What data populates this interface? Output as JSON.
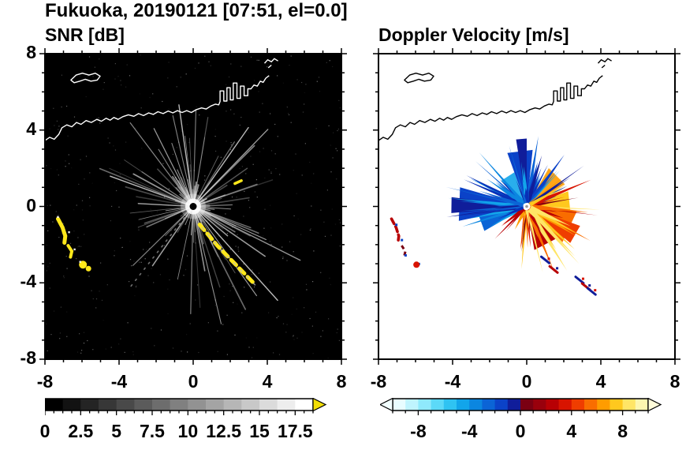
{
  "header": {
    "title": "Fukuoka, 20190121 [07:51, el=0.0]"
  },
  "panels": {
    "snr": {
      "title": "SNR [dB]"
    },
    "doppler": {
      "title": "Doppler Velocity [m/s]"
    }
  },
  "axes": {
    "x_tick_labels": [
      "-8",
      "-4",
      "0",
      "4",
      "8"
    ],
    "x_tick_values": [
      -8,
      -4,
      0,
      4,
      8
    ],
    "y_tick_labels": [
      "8",
      "4",
      "0",
      "-4",
      "-8"
    ],
    "y_tick_values": [
      8,
      4,
      0,
      -4,
      -8
    ],
    "minor_step": 1,
    "range": [
      -8,
      8
    ]
  },
  "colorbars": {
    "snr": {
      "tick_labels": [
        "0",
        "2.5",
        "5",
        "7.5",
        "10",
        "12.5",
        "15",
        "17.5"
      ],
      "tick_values": [
        0,
        2.5,
        5,
        7.5,
        10,
        12.5,
        15,
        17.5
      ],
      "range": [
        0,
        18.75
      ],
      "steps": 15,
      "colormap": "grayscale",
      "start_color": "#000000",
      "end_color": "#ffffff",
      "over_arrow_color": "#f2de05"
    },
    "doppler": {
      "tick_labels": [
        "-8",
        "-4",
        "0",
        "4",
        "8"
      ],
      "tick_values": [
        -8,
        -4,
        0,
        4,
        8
      ],
      "range": [
        -10,
        10
      ],
      "colors": [
        "#e8fdff",
        "#bff4fe",
        "#8fe9fc",
        "#5cd9f8",
        "#2fc3f2",
        "#12a5ea",
        "#0b86e0",
        "#0b64d6",
        "#0b42c8",
        "#101d9a",
        "#7a0012",
        "#99000c",
        "#b80004",
        "#d81400",
        "#ef3d00",
        "#f96d00",
        "#ff9c00",
        "#ffc81e",
        "#ffe566",
        "#fdf6b0"
      ],
      "under_arrow_color": "#f2ffff",
      "over_arrow_color": "#fffcda"
    }
  },
  "map_overlay": {
    "coastline_main": [
      [
        -8,
        3.45
      ],
      [
        -7.75,
        3.62
      ],
      [
        -7.5,
        3.52
      ],
      [
        -7.25,
        3.78
      ],
      [
        -7.08,
        4.12
      ],
      [
        -6.82,
        4.27
      ],
      [
        -6.55,
        4.17
      ],
      [
        -6.3,
        4.4
      ],
      [
        -6.05,
        4.3
      ],
      [
        -5.78,
        4.5
      ],
      [
        -5.5,
        4.4
      ],
      [
        -5.2,
        4.56
      ],
      [
        -4.95,
        4.46
      ],
      [
        -4.7,
        4.62
      ],
      [
        -4.48,
        4.52
      ],
      [
        -4.28,
        4.66
      ],
      [
        -4.05,
        4.56
      ],
      [
        -3.8,
        4.7
      ],
      [
        -3.5,
        4.8
      ],
      [
        -3.2,
        4.72
      ],
      [
        -2.95,
        4.86
      ],
      [
        -2.68,
        4.76
      ],
      [
        -2.4,
        4.9
      ],
      [
        -2.15,
        4.82
      ],
      [
        -1.9,
        4.96
      ],
      [
        -1.62,
        4.86
      ],
      [
        -1.35,
        5.0
      ],
      [
        -1.1,
        4.9
      ],
      [
        -0.85,
        5.02
      ],
      [
        -0.6,
        4.92
      ],
      [
        -0.35,
        5.02
      ],
      [
        -0.1,
        4.92
      ],
      [
        0.15,
        5.06
      ],
      [
        0.45,
        5.16
      ],
      [
        0.7,
        5.1
      ],
      [
        0.95,
        5.26
      ],
      [
        1.2,
        5.36
      ],
      [
        1.38,
        5.32
      ],
      [
        1.45,
        5.5
      ],
      [
        1.45,
        6.05
      ],
      [
        1.65,
        6.05
      ],
      [
        1.65,
        5.52
      ],
      [
        1.82,
        5.52
      ],
      [
        1.82,
        6.22
      ],
      [
        2.0,
        6.22
      ],
      [
        2.0,
        5.58
      ],
      [
        2.16,
        5.58
      ],
      [
        2.16,
        6.46
      ],
      [
        2.36,
        6.46
      ],
      [
        2.36,
        5.66
      ],
      [
        2.55,
        5.66
      ],
      [
        2.55,
        6.3
      ],
      [
        2.75,
        6.3
      ],
      [
        2.75,
        5.8
      ],
      [
        2.95,
        5.8
      ],
      [
        2.95,
        6.16
      ],
      [
        3.12,
        6.16
      ],
      [
        3.28,
        6.36
      ],
      [
        3.46,
        6.3
      ],
      [
        3.62,
        6.56
      ],
      [
        3.78,
        6.5
      ],
      [
        3.92,
        6.72
      ],
      [
        4.1,
        6.85
      ]
    ],
    "island": [
      [
        -6.6,
        6.62
      ],
      [
        -6.32,
        6.88
      ],
      [
        -5.98,
        6.98
      ],
      [
        -5.62,
        6.88
      ],
      [
        -5.28,
        6.98
      ],
      [
        -5.02,
        6.82
      ],
      [
        -5.18,
        6.62
      ],
      [
        -5.52,
        6.56
      ],
      [
        -5.82,
        6.66
      ],
      [
        -6.12,
        6.56
      ],
      [
        -6.42,
        6.48
      ]
    ],
    "top_marks": [
      [
        [
          3.85,
          7.5
        ],
        [
          4.02,
          7.68
        ],
        [
          4.22,
          7.58
        ],
        [
          4.38,
          7.74
        ],
        [
          4.58,
          7.62
        ]
      ],
      [
        [
          4.05,
          7.26
        ],
        [
          4.22,
          7.4
        ]
      ]
    ]
  },
  "chart_data": [
    {
      "type": "heatmap",
      "title": "SNR [dB]",
      "figure_title": "Fukuoka, 20190121 [07:51, el=0.0]",
      "xlabel": "",
      "ylabel": "",
      "xlim": [
        -8,
        8
      ],
      "ylim": [
        -8,
        8
      ],
      "x_ticks": [
        -8,
        -4,
        0,
        4,
        8
      ],
      "y_ticks": [
        -8,
        -4,
        0,
        4,
        8
      ],
      "grid": false,
      "background": "#000000",
      "colorbar": {
        "ticks": [
          0,
          2.5,
          5,
          7.5,
          10,
          12.5,
          15,
          17.5
        ],
        "range": [
          0,
          18.75
        ],
        "colormap": "grayscale",
        "units": "dB",
        "over_arrow": true
      },
      "scene": "Doppler lidar PPI scan on black background: grey radial beam streaks from radar at origin, white coastline of Fukuoka bay along top, bright yellow high-SNR echoes southwest and southeast of the radar",
      "features": {
        "radar_center": [
          0,
          0
        ],
        "echo_arc_west": [
          [
            -7.3,
            -0.65
          ],
          [
            -7.05,
            -1.1
          ],
          [
            -6.9,
            -1.55
          ],
          [
            -6.95,
            -1.9
          ]
        ],
        "echo_arc_west2": [
          [
            -6.75,
            -2.05
          ],
          [
            -6.55,
            -2.35
          ],
          [
            -6.62,
            -2.65
          ]
        ],
        "echo_blob_sw": [
          -5.95,
          -3.05
        ],
        "echo_chain_se": [
          [
            0.35,
            -0.95
          ],
          [
            0.7,
            -1.35
          ],
          [
            1.0,
            -1.7
          ],
          [
            1.3,
            -2.05
          ],
          [
            1.6,
            -2.35
          ],
          [
            1.95,
            -2.7
          ],
          [
            2.3,
            -3.05
          ],
          [
            2.65,
            -3.4
          ],
          [
            3.0,
            -3.75
          ],
          [
            3.3,
            -4.05
          ]
        ],
        "echo_dash_ne": [
          [
            2.25,
            1.2
          ],
          [
            2.6,
            1.35
          ]
        ]
      }
    },
    {
      "type": "heatmap",
      "title": "Doppler Velocity [m/s]",
      "figure_title": "Fukuoka, 20190121 [07:51, el=0.0]",
      "xlabel": "",
      "ylabel": "",
      "xlim": [
        -8,
        8
      ],
      "ylim": [
        -8,
        8
      ],
      "x_ticks": [
        -8,
        -4,
        0,
        4,
        8
      ],
      "y_ticks": [
        -8,
        -4,
        0,
        4,
        8
      ],
      "grid": false,
      "background": "#ffffff",
      "colorbar": {
        "ticks": [
          -8,
          -4,
          0,
          4,
          8
        ],
        "range": [
          -10,
          10
        ],
        "colormap": "diverging cyan-blue-navy / maroon-red-orange-yellow",
        "units": "m/s",
        "under_arrow": true,
        "over_arrow": true
      },
      "scene": "White background; spiky radial velocity fan at origin: negative velocities (blue/navy) toward W-NW-N, positive velocities (maroon-red-orange-yellow) toward E-SE; black coastline; sparse red/blue echo fragments SW and SSE",
      "features": {
        "fan_center": [
          0,
          0
        ],
        "fan_radius_units": 2.4,
        "negative_sector_deg": [
          148,
          300
        ],
        "positive_sector_deg": [
          -30,
          100
        ],
        "gap_sector_deg": [
          100,
          148
        ],
        "echo_arc_west": [
          [
            -7.3,
            -0.65
          ],
          [
            -7.05,
            -1.1
          ],
          [
            -6.9,
            -1.55
          ],
          [
            -6.95,
            -1.9
          ]
        ],
        "echo_arc_west2": [
          [
            -6.75,
            -2.05
          ],
          [
            -6.55,
            -2.35
          ],
          [
            -6.62,
            -2.65
          ]
        ],
        "echo_blob_sw": [
          -5.95,
          -3.05
        ],
        "fragments_se": [
          [
            1.0,
            -2.8
          ],
          [
            1.45,
            -3.3
          ],
          [
            2.85,
            -3.85
          ],
          [
            3.2,
            -4.2
          ],
          [
            3.5,
            -4.45
          ]
        ]
      }
    }
  ]
}
